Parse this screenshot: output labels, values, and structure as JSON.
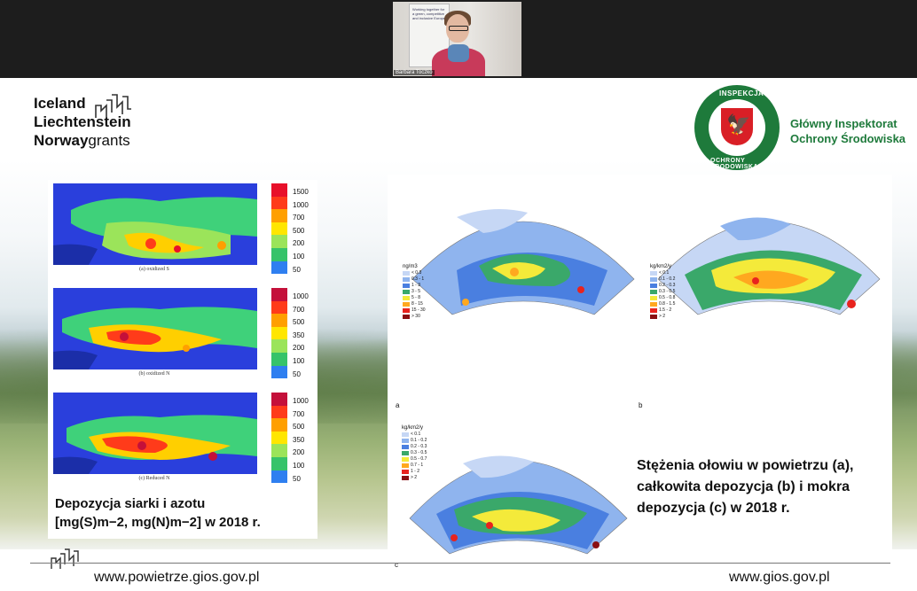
{
  "video": {
    "participant_name": "Barbara Toczko",
    "banner_text": "Working together for a green, competitive and inclusive Europe"
  },
  "logo_left": {
    "line1": "Iceland",
    "line2": "Liechtenstein",
    "line3_bold": "Norway",
    "line3_rest": "grants"
  },
  "logo_right": {
    "ring_top": "INSPEKCJA",
    "ring_bottom": "OCHRONY ŚRODOWISKA",
    "title_line1": "Główny Inspektorat",
    "title_line2": "Ochrony Środowiska"
  },
  "deposition_maps": [
    {
      "caption": "(a) oxidized S",
      "legend": [
        "1500",
        "1000",
        "700",
        "500",
        "200",
        "100",
        "50"
      ],
      "legend_colors": [
        "#e8102a",
        "#ff3b1a",
        "#ff9f00",
        "#ffe600",
        "#9be45a",
        "#36c36a",
        "#2f7ff0"
      ]
    },
    {
      "caption": "(b) oxidized N",
      "legend": [
        "1000",
        "700",
        "500",
        "350",
        "200",
        "100",
        "50"
      ],
      "legend_colors": [
        "#c4103a",
        "#ff3b1a",
        "#ff9f00",
        "#ffe600",
        "#9be45a",
        "#36c36a",
        "#2f7ff0"
      ]
    },
    {
      "caption": "(c) Reduced N",
      "legend": [
        "1000",
        "700",
        "500",
        "350",
        "200",
        "100",
        "50"
      ],
      "legend_colors": [
        "#c4103a",
        "#ff3b1a",
        "#ff9f00",
        "#ffe600",
        "#9be45a",
        "#36c36a",
        "#2f7ff0"
      ]
    }
  ],
  "deposition_title_line1": "Depozycja siarki i azotu",
  "deposition_title_line2": "[mg(S)m−2, mg(N)m−2] w 2018 r.",
  "lead_maps": [
    {
      "tag": "a",
      "unit": "ng/m3",
      "items": [
        "< 0.3",
        "0.3 - 1",
        "1 - 3",
        "3 - 5",
        "5 - 8",
        "8 - 15",
        "15 - 30",
        "> 30"
      ]
    },
    {
      "tag": "b",
      "unit": "kg/km2/y",
      "items": [
        "< 0.1",
        "0.1 - 0.2",
        "0.2 - 0.3",
        "0.3 - 0.5",
        "0.5 - 0.8",
        "0.8 - 1.5",
        "1.5 - 2",
        "> 2"
      ]
    },
    {
      "tag": "c",
      "unit": "kg/km2/y",
      "items": [
        "< 0.1",
        "0.1 - 0.2",
        "0.2 - 0.3",
        "0.3 - 0.5",
        "0.5 - 0.7",
        "0.7 - 1",
        "1 - 2",
        "> 2"
      ]
    }
  ],
  "lead_legend_colors": [
    "#c6d7f5",
    "#8fb4ee",
    "#4a7fe0",
    "#3aa86a",
    "#f4ea3a",
    "#ffa81f",
    "#e8231e",
    "#8a0f12"
  ],
  "lead_caption": "Stężenia ołowiu w powietrzu (a), całkowita depozycja (b) i mokra depozycja (c) w 2018 r.",
  "footer": {
    "url_left": "www.powietrze.gios.gov.pl",
    "url_right": "www.gios.gov.pl"
  }
}
